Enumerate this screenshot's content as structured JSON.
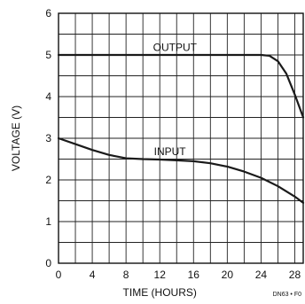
{
  "chart_data": {
    "type": "line",
    "xlabel": "TIME (HOURS)",
    "ylabel": "VOLTAGE (V)",
    "xlim": [
      0,
      29
    ],
    "ylim": [
      0,
      6
    ],
    "x_ticks": [
      0,
      4,
      8,
      12,
      16,
      20,
      24,
      28
    ],
    "y_ticks": [
      0,
      1,
      2,
      3,
      4,
      5,
      6
    ],
    "x_minor_step": 2,
    "y_minor_step": 0.5,
    "grid": true,
    "line_color": "#1a1a1a",
    "series": [
      {
        "name": "OUTPUT",
        "x": [
          0,
          4,
          8,
          12,
          16,
          20,
          24,
          25,
          26,
          27,
          28,
          29
        ],
        "y": [
          5.0,
          5.0,
          5.0,
          5.0,
          5.0,
          5.0,
          5.0,
          4.98,
          4.85,
          4.55,
          4.05,
          3.5
        ]
      },
      {
        "name": "INPUT",
        "x": [
          0,
          2,
          4,
          6,
          8,
          10,
          12,
          14,
          16,
          18,
          20,
          22,
          24,
          26,
          28,
          29
        ],
        "y": [
          3.0,
          2.86,
          2.72,
          2.6,
          2.52,
          2.5,
          2.49,
          2.47,
          2.45,
          2.4,
          2.32,
          2.2,
          2.05,
          1.85,
          1.6,
          1.45
        ]
      }
    ],
    "figure_code": "DN63 • F0"
  }
}
